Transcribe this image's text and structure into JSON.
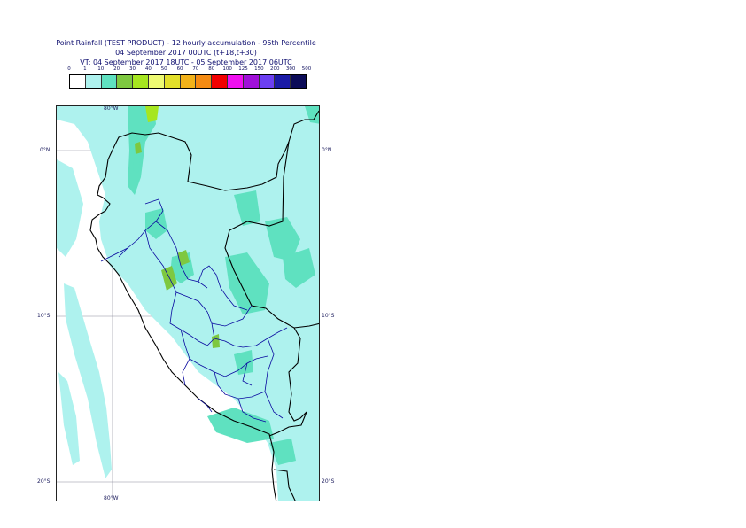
{
  "title": {
    "line1": "Point Rainfall (TEST PRODUCT) - 12 hourly accumulation - 95th Percentile",
    "line2": "04 September 2017 00UTC (t+18,t+30)",
    "line3": "VT: 04 September 2017 18UTC - 05 September 2017 06UTC"
  },
  "legend": {
    "thresholds": [
      "0",
      "1",
      "10",
      "20",
      "30",
      "40",
      "50",
      "60",
      "70",
      "80",
      "100",
      "125",
      "150",
      "200",
      "300",
      "500"
    ],
    "colors": [
      "#ffffff",
      "#aef2ee",
      "#5fe1c0",
      "#7ec840",
      "#a6e620",
      "#eefa72",
      "#e3e02a",
      "#f2b21a",
      "#f58b12",
      "#f20000",
      "#f00ff0",
      "#a010d8",
      "#6c3ff2",
      "#1a1aa6",
      "#0c0c58"
    ]
  },
  "map": {
    "lon_labels": {
      "top": "80°W",
      "bottom": "80°W"
    },
    "lat_labels": [
      {
        "left": "0°N",
        "right": "0°N"
      },
      {
        "left": "10°S",
        "right": "10°S"
      },
      {
        "left": "20°S",
        "right": "20°S"
      }
    ],
    "rain_colors": {
      "light": "#aef2ee",
      "moderate": "#5fe1c0",
      "heavy": "#7ec840",
      "heavier": "#a6e620"
    },
    "coast_color": "#000000",
    "border_color": "#0a0aa0"
  }
}
